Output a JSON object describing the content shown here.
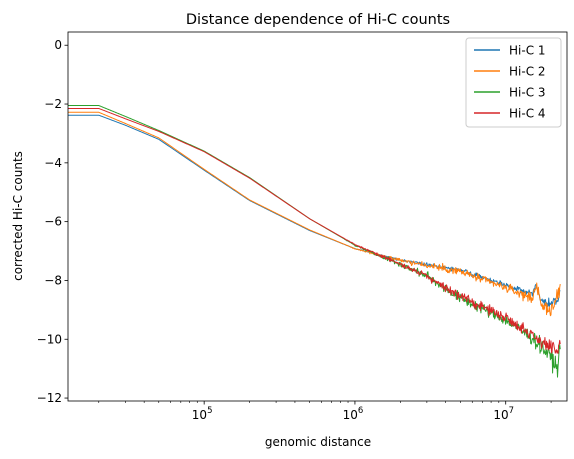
{
  "chart_data": {
    "type": "line",
    "title": "Distance dependence of Hi-C counts",
    "xlabel": "genomic distance",
    "ylabel": "corrected Hi-C counts",
    "xscale": "log",
    "xlim": [
      12500,
      25500000
    ],
    "ylim": [
      -12.1,
      0.45
    ],
    "yticks": [
      0,
      -2,
      -4,
      -6,
      -8,
      -10,
      -12
    ],
    "ytick_labels": [
      "0",
      "−2",
      "−4",
      "−6",
      "−8",
      "−10",
      "−12"
    ],
    "xticks": [
      {
        "value": 100000,
        "base": "10",
        "exp": "5"
      },
      {
        "value": 1000000,
        "base": "10",
        "exp": "6"
      },
      {
        "value": 10000000,
        "base": "10",
        "exp": "7"
      }
    ],
    "grid": false,
    "legend_position": "top-right",
    "series": [
      {
        "name": "Hi-C 1",
        "color": "#1f77b4",
        "x": [
          12500,
          20000,
          30000,
          50000,
          100000,
          200000,
          500000,
          1000000,
          2000000,
          5000000,
          10000000,
          15000000,
          16000000,
          17000000,
          20000000,
          22000000,
          23000000
        ],
        "y": [
          -2.38,
          -2.38,
          -2.72,
          -3.2,
          -4.25,
          -5.28,
          -6.3,
          -6.92,
          -7.3,
          -7.65,
          -8.15,
          -8.45,
          -8.1,
          -8.7,
          -8.8,
          -8.65,
          -8.4
        ],
        "noise": 0.08
      },
      {
        "name": "Hi-C 2",
        "color": "#ff7f0e",
        "x": [
          12500,
          20000,
          30000,
          50000,
          100000,
          200000,
          500000,
          1000000,
          2000000,
          5000000,
          10000000,
          15000000,
          16000000,
          17000000,
          20000000,
          22000000,
          23000000
        ],
        "y": [
          -2.28,
          -2.28,
          -2.66,
          -3.15,
          -4.22,
          -5.26,
          -6.28,
          -6.92,
          -7.32,
          -7.7,
          -8.25,
          -8.6,
          -8.1,
          -8.85,
          -9.0,
          -8.6,
          -8.1
        ],
        "noise": 0.13
      },
      {
        "name": "Hi-C 3",
        "color": "#2ca02c",
        "x": [
          12500,
          20000,
          30000,
          50000,
          100000,
          200000,
          500000,
          1000000,
          2000000,
          3000000,
          5000000,
          10000000,
          15000000,
          20000000,
          22000000,
          23000000
        ],
        "y": [
          -2.05,
          -2.05,
          -2.42,
          -2.9,
          -3.6,
          -4.5,
          -5.9,
          -6.8,
          -7.45,
          -7.85,
          -8.6,
          -9.35,
          -9.95,
          -10.6,
          -11.0,
          -10.3
        ],
        "noise": 0.17
      },
      {
        "name": "Hi-C 4",
        "color": "#d62728",
        "x": [
          12500,
          20000,
          30000,
          50000,
          100000,
          200000,
          500000,
          1000000,
          2000000,
          3000000,
          5000000,
          10000000,
          15000000,
          20000000,
          22000000,
          23000000
        ],
        "y": [
          -2.15,
          -2.15,
          -2.5,
          -2.93,
          -3.62,
          -4.52,
          -5.9,
          -6.78,
          -7.45,
          -7.85,
          -8.55,
          -9.25,
          -9.85,
          -10.3,
          -10.5,
          -10.2
        ],
        "noise": 0.15
      }
    ]
  }
}
